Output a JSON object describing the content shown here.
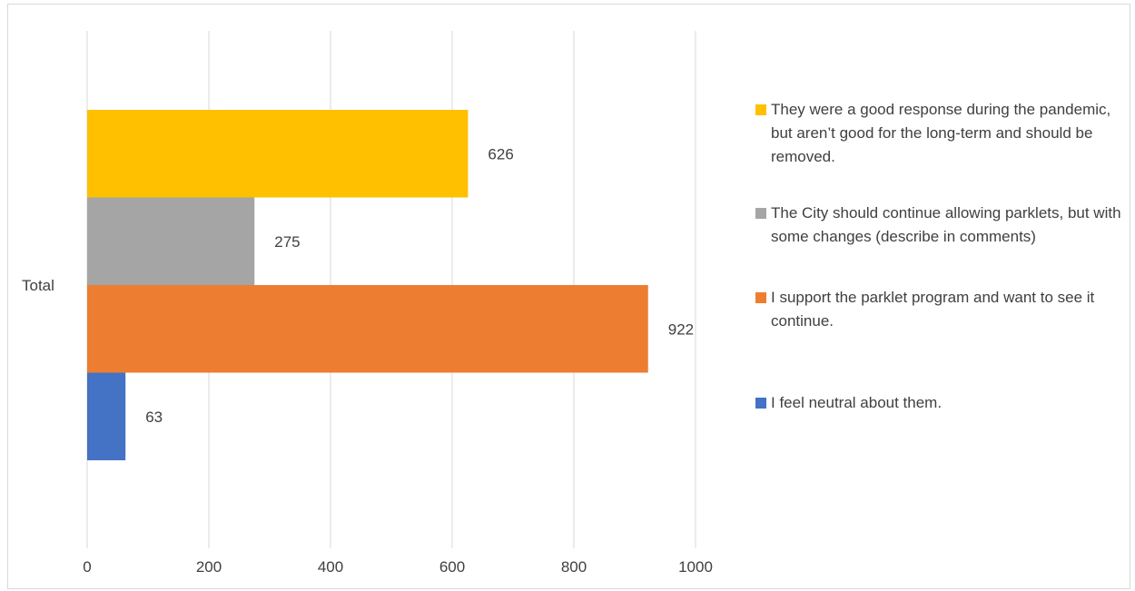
{
  "chart_data": {
    "type": "bar",
    "orientation": "horizontal",
    "categories": [
      "Total"
    ],
    "series": [
      {
        "name": "They were a good response during the pandemic, but aren’t good for the long-term and should be removed.",
        "values": [
          626
        ],
        "color": "#FFC000"
      },
      {
        "name": "The City should continue allowing parklets, but with some changes (describe in comments)",
        "values": [
          275
        ],
        "color": "#A5A5A5"
      },
      {
        "name": "I support the parklet program and want to see it continue.",
        "values": [
          922
        ],
        "color": "#ED7D31"
      },
      {
        "name": "I feel neutral about them.",
        "values": [
          63
        ],
        "color": "#4472C4"
      }
    ],
    "xlim": [
      0,
      1000
    ],
    "xticks": [
      "0",
      "200",
      "400",
      "600",
      "800",
      "1000"
    ],
    "grid": true,
    "legend": "right",
    "data_labels": true,
    "title": "",
    "xlabel": "",
    "ylabel": ""
  }
}
